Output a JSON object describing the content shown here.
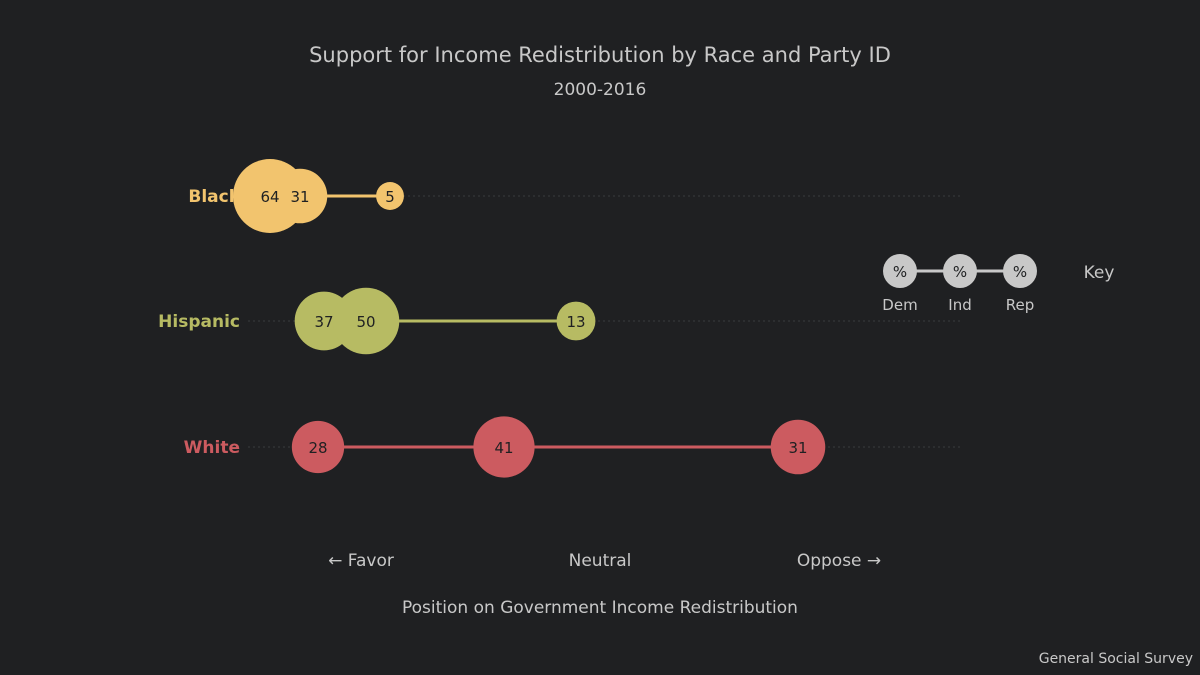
{
  "chart_data": {
    "type": "dot-bubble",
    "title": "Support for Income Redistribution by Race and Party ID",
    "subtitle": "2000-2016",
    "xlabel": "Position on Government Income Redistribution",
    "x_ticks": [
      "← Favor",
      "Neutral",
      "Oppose →"
    ],
    "xlim": [
      1,
      7
    ],
    "source": "General Social Survey",
    "party_order": [
      "Dem",
      "Ind",
      "Rep"
    ],
    "rows": [
      {
        "group": "Black",
        "color": "#f2c46e",
        "points": [
          {
            "party": "Dem",
            "position": 1.25,
            "percent": 64
          },
          {
            "party": "Ind",
            "position": 1.5,
            "percent": 31
          },
          {
            "party": "Rep",
            "position": 2.25,
            "percent": 5
          }
        ]
      },
      {
        "group": "Hispanic",
        "color": "#b7bb63",
        "points": [
          {
            "party": "Dem",
            "position": 1.7,
            "percent": 37
          },
          {
            "party": "Ind",
            "position": 2.05,
            "percent": 50
          },
          {
            "party": "Rep",
            "position": 3.8,
            "percent": 13
          }
        ]
      },
      {
        "group": "White",
        "color": "#cc5b60",
        "points": [
          {
            "party": "Dem",
            "position": 1.65,
            "percent": 28
          },
          {
            "party": "Ind",
            "position": 3.2,
            "percent": 41
          },
          {
            "party": "Rep",
            "position": 5.65,
            "percent": 31
          }
        ]
      }
    ],
    "key": {
      "title": "Key",
      "symbol": "%",
      "labels": [
        "Dem",
        "Ind",
        "Rep"
      ],
      "color": "#c8c8c8"
    }
  }
}
